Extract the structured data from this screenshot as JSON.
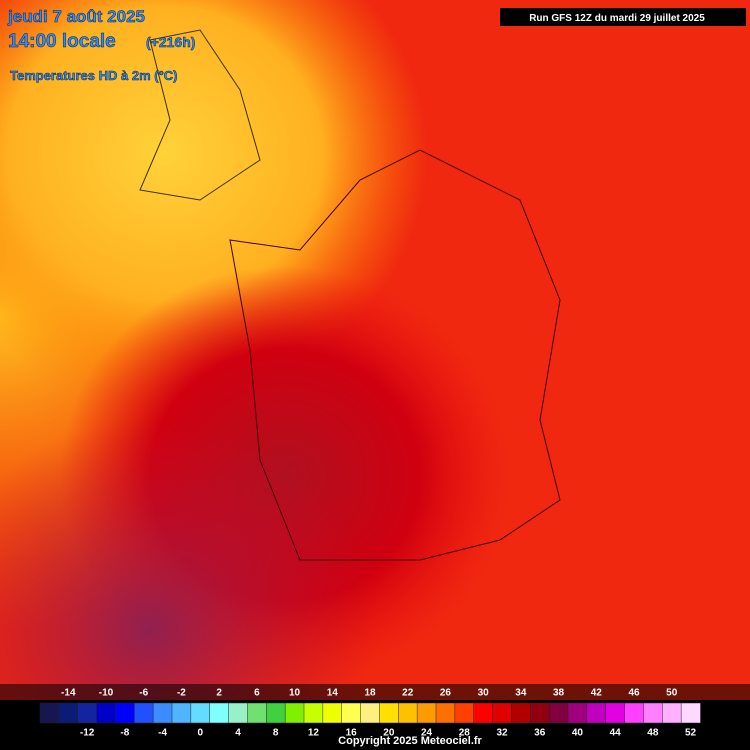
{
  "header": {
    "date": "jeudi 7 août 2025",
    "time": "14:00 locale",
    "lead": "(+216h)",
    "field": "Temperatures HD à 2m (°C)",
    "run": "Run GFS 12Z du mardi 29 juillet 2025"
  },
  "scale": {
    "colors": [
      "#161650",
      "#0c1a78",
      "#1424a0",
      "#0000c8",
      "#0000ff",
      "#2050ff",
      "#3c8cff",
      "#50b4ff",
      "#64dcff",
      "#80ffff",
      "#98f0c8",
      "#70e070",
      "#40d040",
      "#80f000",
      "#c8ff00",
      "#f0ff00",
      "#ffff50",
      "#ffee80",
      "#ffe000",
      "#ffc000",
      "#ff9a00",
      "#ff7000",
      "#ff4000",
      "#ff0000",
      "#e00000",
      "#b00000",
      "#900010",
      "#800040",
      "#a00080",
      "#c000c0",
      "#e000e0",
      "#ff40ff",
      "#ff80ff",
      "#ffb0ff",
      "#ffd8ff"
    ],
    "labels": [
      -14,
      -12,
      -10,
      -8,
      -6,
      -4,
      -2,
      0,
      2,
      4,
      6,
      8,
      10,
      12,
      14,
      16,
      18,
      20,
      22,
      24,
      26,
      28,
      30,
      32,
      34,
      36,
      38,
      40,
      42,
      44,
      46,
      48,
      50,
      52
    ]
  },
  "footer": {
    "copyright": "Copyright 2025 Meteociel.fr"
  }
}
